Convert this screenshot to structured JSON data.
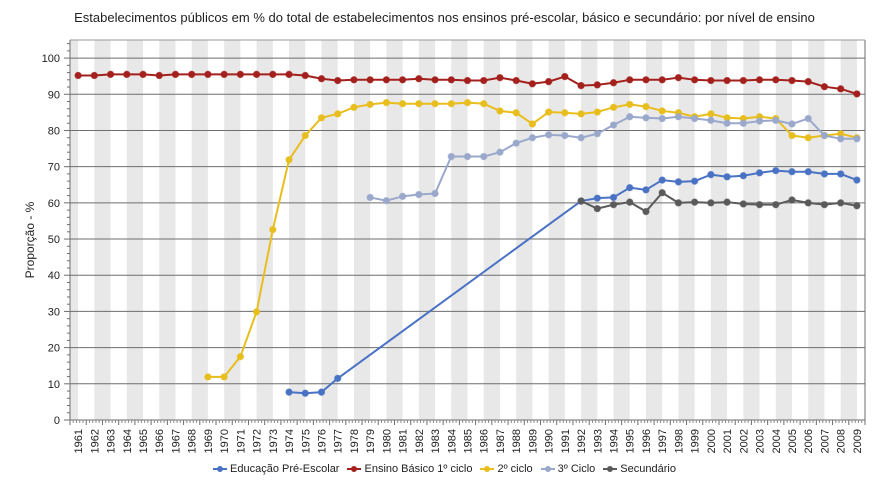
{
  "chart_data": {
    "type": "line",
    "title": "Estabelecimentos públicos em % do total de estabelecimentos nos ensinos pré-escolar, básico e secundário: por nível de ensino",
    "xlabel": "",
    "ylabel": "Proporção - %",
    "ylim": [
      0,
      105
    ],
    "yticks": [
      0,
      10,
      20,
      30,
      40,
      50,
      60,
      70,
      80,
      90,
      100
    ],
    "grid": true,
    "legend_position": "bottom",
    "categories": [
      "1961",
      "1962",
      "1963",
      "1964",
      "1965",
      "1966",
      "1967",
      "1968",
      "1969",
      "1970",
      "1971",
      "1972",
      "1973",
      "1974",
      "1975",
      "1976",
      "1977",
      "1978",
      "1979",
      "1980",
      "1981",
      "1982",
      "1983",
      "1984",
      "1985",
      "1986",
      "1987",
      "1988",
      "1989",
      "1990",
      "1991",
      "1992",
      "1993",
      "1994",
      "1995",
      "1996",
      "1997",
      "1998",
      "1999",
      "2000",
      "2001",
      "2002",
      "2003",
      "2004",
      "2005",
      "2006",
      "2007",
      "2008",
      "2009"
    ],
    "series": [
      {
        "name": "Educação Pré-Escolar",
        "color": "#4a72c4",
        "values": [
          null,
          null,
          null,
          null,
          null,
          null,
          null,
          null,
          null,
          null,
          null,
          null,
          null,
          7.7,
          7.4,
          7.7,
          11.5,
          null,
          null,
          null,
          null,
          null,
          null,
          null,
          null,
          null,
          null,
          null,
          null,
          null,
          null,
          60.5,
          61.3,
          61.5,
          64.2,
          63.6,
          66.3,
          65.8,
          66.0,
          67.8,
          67.2,
          67.5,
          68.3,
          68.9,
          68.6,
          68.6,
          68.0,
          68.0,
          66.3
        ]
      },
      {
        "name": "Ensino Básico 1º ciclo",
        "color": "#a3201c",
        "values": [
          95.2,
          95.2,
          95.5,
          95.5,
          95.5,
          95.2,
          95.5,
          95.5,
          95.5,
          95.5,
          95.5,
          95.5,
          95.5,
          95.5,
          95.2,
          94.3,
          93.8,
          94.0,
          94.0,
          94.0,
          94.0,
          94.3,
          94.0,
          94.0,
          93.8,
          93.8,
          94.6,
          93.8,
          92.9,
          93.5,
          94.9,
          92.4,
          92.6,
          93.2,
          94.0,
          94.0,
          94.0,
          94.6,
          94.0,
          93.8,
          93.8,
          93.8,
          94.0,
          94.0,
          93.8,
          93.5,
          92.1,
          91.5,
          90.1
        ]
      },
      {
        "name": "2º ciclo",
        "color": "#e8be1e",
        "values": [
          null,
          null,
          null,
          null,
          null,
          null,
          null,
          null,
          11.9,
          11.9,
          17.5,
          29.9,
          52.6,
          71.9,
          78.6,
          83.5,
          84.6,
          86.4,
          87.2,
          87.7,
          87.4,
          87.4,
          87.4,
          87.4,
          87.7,
          87.4,
          85.4,
          84.9,
          81.8,
          85.1,
          84.9,
          84.6,
          85.1,
          86.4,
          87.2,
          86.6,
          85.4,
          84.9,
          83.8,
          84.6,
          83.5,
          83.3,
          83.8,
          83.3,
          78.6,
          78.0,
          78.6,
          79.1,
          78.0
        ]
      },
      {
        "name": "3º Ciclo",
        "color": "#9aa8cc",
        "values": [
          null,
          null,
          null,
          null,
          null,
          null,
          null,
          null,
          null,
          null,
          null,
          null,
          null,
          null,
          null,
          null,
          null,
          null,
          61.5,
          60.6,
          61.8,
          62.3,
          62.6,
          72.8,
          72.8,
          72.8,
          74.0,
          76.5,
          78.0,
          78.8,
          78.6,
          78.0,
          79.1,
          81.5,
          83.8,
          83.5,
          83.3,
          83.8,
          83.3,
          82.8,
          82.0,
          82.0,
          82.6,
          82.8,
          81.8,
          83.3,
          78.6,
          77.7,
          77.7
        ]
      },
      {
        "name": "Secundário",
        "color": "#5a5a5a",
        "values": [
          null,
          null,
          null,
          null,
          null,
          null,
          null,
          null,
          null,
          null,
          null,
          null,
          null,
          null,
          null,
          null,
          null,
          null,
          null,
          null,
          null,
          null,
          null,
          null,
          null,
          null,
          null,
          null,
          null,
          null,
          null,
          60.5,
          58.4,
          59.5,
          60.2,
          57.6,
          62.8,
          60.0,
          60.2,
          60.0,
          60.2,
          59.7,
          59.5,
          59.5,
          60.8,
          60.0,
          59.5,
          60.0,
          59.2
        ]
      }
    ]
  }
}
